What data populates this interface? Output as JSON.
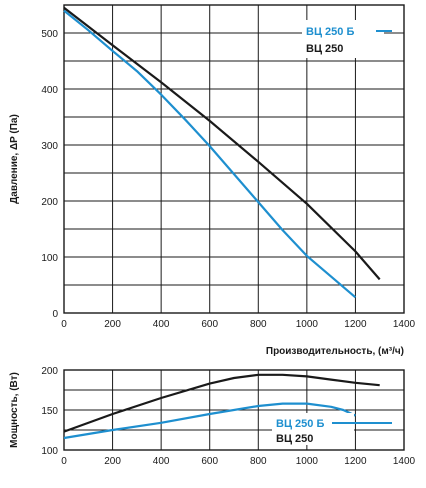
{
  "chart_data": [
    {
      "type": "line",
      "ylabel": "Давление, ΔP (Па)",
      "xlabel": "Производительность, (м³/ч)",
      "xlim": [
        0,
        1400
      ],
      "ylim": [
        0,
        550
      ],
      "xticks": [
        0,
        200,
        400,
        600,
        800,
        1000,
        1200,
        1400
      ],
      "yticks": [
        0,
        100,
        200,
        300,
        400,
        500
      ],
      "grid": true,
      "legend_position": "top-right",
      "series": [
        {
          "name": "ВЦ 250 Б",
          "color": "#1e8fcf",
          "x": [
            0,
            100,
            200,
            300,
            400,
            500,
            600,
            700,
            800,
            900,
            1000,
            1100,
            1200
          ],
          "y": [
            540,
            505,
            468,
            432,
            390,
            345,
            298,
            248,
            198,
            148,
            102,
            65,
            28
          ]
        },
        {
          "name": "ВЦ 250",
          "color": "#1a1a1a",
          "x": [
            0,
            200,
            400,
            600,
            800,
            1000,
            1200,
            1300
          ],
          "y": [
            545,
            478,
            412,
            343,
            270,
            195,
            110,
            60
          ]
        }
      ]
    },
    {
      "type": "line",
      "ylabel": "Мощность, (Вт)",
      "xlabel": "",
      "xlim": [
        0,
        1400
      ],
      "ylim": [
        100,
        200
      ],
      "xticks": [
        0,
        200,
        400,
        600,
        800,
        1000,
        1200,
        1400
      ],
      "yticks": [
        100,
        150,
        200
      ],
      "grid": true,
      "legend_position": "lower-right",
      "series": [
        {
          "name": "ВЦ 250 Б",
          "color": "#1e8fcf",
          "x": [
            0,
            200,
            400,
            600,
            800,
            900,
            1000,
            1100,
            1150,
            1200
          ],
          "y": [
            115,
            125,
            134,
            145,
            155,
            158,
            158,
            154,
            150,
            143
          ]
        },
        {
          "name": "ВЦ 250",
          "color": "#1a1a1a",
          "x": [
            0,
            200,
            400,
            600,
            700,
            800,
            900,
            1000,
            1100,
            1200,
            1300
          ],
          "y": [
            123,
            145,
            165,
            183,
            190,
            194,
            194,
            192,
            188,
            184,
            181
          ]
        }
      ]
    }
  ]
}
